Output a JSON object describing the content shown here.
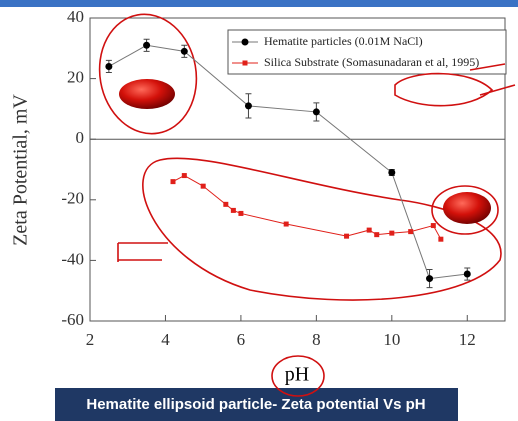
{
  "chart_data": {
    "type": "line",
    "xlabel": "pH",
    "ylabel": "Zeta Potential, mV",
    "caption": "Hematite ellipsoid particle- Zeta potential Vs pH",
    "xlim": [
      2,
      13
    ],
    "xticks": [
      2,
      4,
      6,
      8,
      10,
      12
    ],
    "ylim": [
      -60,
      40
    ],
    "yticks": [
      -60,
      -40,
      -20,
      0,
      20,
      40
    ],
    "series": [
      {
        "name": "Hematite particles (0.01M NaCl)",
        "color": "#000000",
        "marker": "circle",
        "x": [
          2.5,
          3.5,
          4.5,
          6.2,
          8,
          10,
          11,
          12
        ],
        "values": [
          24,
          31,
          29,
          11,
          9,
          -11,
          -46,
          -44.5
        ],
        "errors": [
          2,
          2,
          2,
          4,
          3,
          1,
          3,
          2
        ]
      },
      {
        "name": "Silica Substrate (Somasunadaran et al, 1995)",
        "color": "#e0201a",
        "marker": "square",
        "x": [
          4.2,
          4.5,
          5,
          5.6,
          5.8,
          6,
          7.2,
          8.8,
          9.4,
          9.6,
          10,
          10.5,
          11.1,
          11.3
        ],
        "values": [
          -14,
          -12,
          -15.5,
          -21.5,
          -23.5,
          -24.5,
          -28,
          -32,
          -30,
          -31.5,
          -31,
          -30.5,
          -28.5,
          -33
        ]
      }
    ]
  }
}
